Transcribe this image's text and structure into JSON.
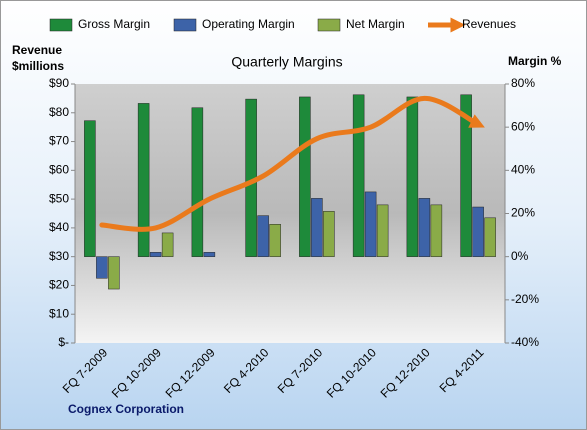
{
  "chart_data": {
    "type": "bar",
    "title": "Quarterly Margins",
    "y_label": "Revenue $millions",
    "y2_label": "Margin %",
    "footer": "Cognex Corporation",
    "categories": [
      "FQ 7-2009",
      "FQ 10-2009",
      "FQ 12-2009",
      "FQ 4-2010",
      "FQ 7-2010",
      "FQ 10-2010",
      "FQ 12-2010",
      "FQ 4-2011"
    ],
    "series": [
      {
        "name": "Gross Margin",
        "type": "bar",
        "axis": "y2",
        "color": "#1e8a3a",
        "values": [
          63,
          71,
          69,
          73,
          74,
          75,
          74,
          75
        ]
      },
      {
        "name": "Operating Margin",
        "type": "bar",
        "axis": "y2",
        "color": "#3d63a8",
        "values": [
          -10,
          2,
          2,
          19,
          27,
          30,
          27,
          23
        ]
      },
      {
        "name": "Net Margin",
        "type": "bar",
        "axis": "y2",
        "color": "#8aab48",
        "values": [
          -15,
          11,
          0,
          15,
          21,
          24,
          24,
          18
        ]
      },
      {
        "name": "Revenues",
        "type": "line",
        "axis": "y",
        "color": "#ea7a1c",
        "values": [
          41,
          40,
          50,
          58,
          71,
          75,
          85,
          76
        ]
      }
    ],
    "ylim": [
      0,
      90
    ],
    "yticks": [
      {
        "value": 0,
        "label": "$-"
      },
      {
        "value": 10,
        "label": "$10"
      },
      {
        "value": 20,
        "label": "$20"
      },
      {
        "value": 30,
        "label": "$30"
      },
      {
        "value": 40,
        "label": "$40"
      },
      {
        "value": 50,
        "label": "$50"
      },
      {
        "value": 60,
        "label": "$60"
      },
      {
        "value": 70,
        "label": "$70"
      },
      {
        "value": 80,
        "label": "$80"
      },
      {
        "value": 90,
        "label": "$90"
      }
    ],
    "y2lim": [
      -40,
      80
    ],
    "y2ticks": [
      {
        "value": -40,
        "label": "-40%"
      },
      {
        "value": -20,
        "label": "-20%"
      },
      {
        "value": 0,
        "label": "0%"
      },
      {
        "value": 20,
        "label": "20%"
      },
      {
        "value": 40,
        "label": "40%"
      },
      {
        "value": 60,
        "label": "60%"
      },
      {
        "value": 80,
        "label": "80%"
      }
    ],
    "legend": "top"
  }
}
